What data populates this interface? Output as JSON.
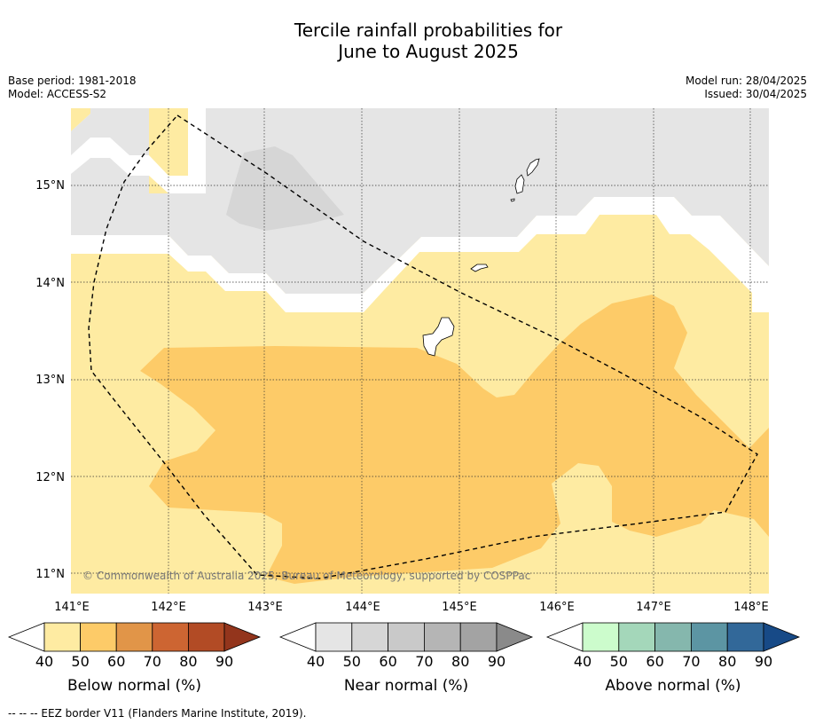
{
  "title": {
    "line1": "Tercile rainfall probabilities for",
    "line2": "June to August 2025"
  },
  "meta": {
    "base_period": "Base period: 1981-2018",
    "model": "Model: ACCESS-S2",
    "model_run": "Model run: 28/04/2025",
    "issued": "Issued: 30/04/2025"
  },
  "map": {
    "copyright": "© Commonwealth of Australia 2025, Bureau of Meteorology, supported by COSPPac",
    "lon_ticks": [
      "141°E",
      "142°E",
      "143°E",
      "144°E",
      "145°E",
      "146°E",
      "147°E",
      "148°E"
    ],
    "lat_ticks": [
      "15°N",
      "14°N",
      "13°N",
      "12°N",
      "11°N"
    ],
    "colors": {
      "near_40": "#e5e5e5",
      "near_50": "#d6d6d6",
      "below_40": "#feeba2",
      "below_50": "#fdcb68",
      "border": "#000000"
    }
  },
  "colorbars": [
    {
      "label": "Below normal (%)",
      "ticks": [
        "40",
        "50",
        "60",
        "70",
        "80",
        "90"
      ],
      "colors": [
        "#ffffff",
        "#feeba2",
        "#fdcb68",
        "#e19548",
        "#cd6532",
        "#b24b25",
        "#93351c"
      ]
    },
    {
      "label": "Near normal (%)",
      "ticks": [
        "40",
        "50",
        "60",
        "70",
        "80",
        "90"
      ],
      "colors": [
        "#ffffff",
        "#e5e5e5",
        "#d6d6d6",
        "#c9c9c9",
        "#b5b5b5",
        "#a3a3a3",
        "#8a8a8a"
      ]
    },
    {
      "label": "Above normal (%)",
      "ticks": [
        "40",
        "50",
        "60",
        "70",
        "80",
        "90"
      ],
      "colors": [
        "#ffffff",
        "#ccfccc",
        "#a4d7ba",
        "#85b7ad",
        "#5c95a3",
        "#326899",
        "#174a87"
      ]
    }
  ],
  "legend": "--  --  -- EEZ border V11 (Flanders Marine Institute, 2019)."
}
